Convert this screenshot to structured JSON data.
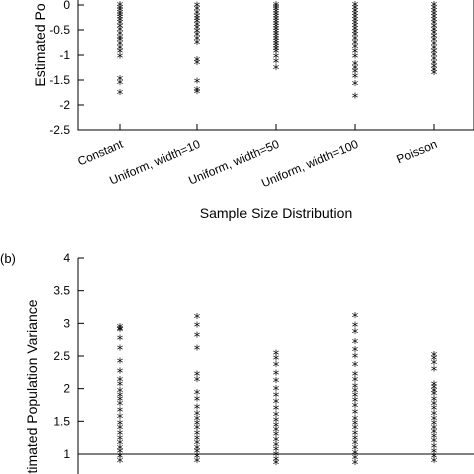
{
  "chart_data": [
    {
      "panel": "(a)",
      "type": "scatter",
      "marker": "*",
      "xlabel": "Sample Size Distribution",
      "ylabel": "Estimated Po",
      "categories": [
        "Constant",
        "Uniform, width=10",
        "Uniform, width=50",
        "Uniform, width=100",
        "Poisson"
      ],
      "ylim": [
        -2.5,
        0
      ],
      "yticks": [
        "0",
        "-0.5",
        "-1",
        "-1.5",
        "-2",
        "-2.5"
      ],
      "series": [
        {
          "category": "Constant",
          "values": [
            -0.02,
            -0.08,
            -0.12,
            -0.18,
            -0.22,
            -0.27,
            -0.32,
            -0.38,
            -0.45,
            -0.52,
            -0.6,
            -0.68,
            -0.72,
            -0.8,
            -0.88,
            -0.95,
            -1.05,
            -1.5,
            -1.58,
            -1.78
          ]
        },
        {
          "category": "Uniform, width=10",
          "values": [
            -0.03,
            -0.1,
            -0.18,
            -0.25,
            -0.3,
            -0.35,
            -0.42,
            -0.48,
            -0.55,
            -0.62,
            -0.7,
            -0.78,
            -1.12,
            -1.18,
            -1.55,
            -1.72,
            -1.76
          ]
        },
        {
          "category": "Uniform, width=50",
          "values": [
            -0.02,
            -0.06,
            -0.1,
            -0.15,
            -0.2,
            -0.25,
            -0.3,
            -0.35,
            -0.4,
            -0.45,
            -0.5,
            -0.55,
            -0.6,
            -0.65,
            -0.7,
            -0.75,
            -0.8,
            -0.85,
            -0.9,
            -0.95,
            -1.05,
            -1.15,
            -1.28
          ]
        },
        {
          "category": "Uniform, width=100",
          "values": [
            -0.02,
            -0.08,
            -0.14,
            -0.2,
            -0.26,
            -0.32,
            -0.38,
            -0.44,
            -0.5,
            -0.56,
            -0.62,
            -0.7,
            -0.78,
            -0.86,
            -0.95,
            -1.05,
            -1.2,
            -1.28,
            -1.35,
            -1.45,
            -1.6,
            -1.85
          ]
        },
        {
          "category": "Poisson",
          "values": [
            -0.02,
            -0.08,
            -0.14,
            -0.2,
            -0.26,
            -0.32,
            -0.38,
            -0.45,
            -0.52,
            -0.58,
            -0.65,
            -0.72,
            -0.8,
            -0.88,
            -0.95,
            -1.02,
            -1.1,
            -1.18,
            -1.25,
            -1.32,
            -1.38
          ]
        }
      ]
    },
    {
      "panel": "(b)",
      "type": "scatter",
      "marker": "*",
      "xlabel": "",
      "ylabel": "stimated Population Variance",
      "categories": [
        "Constant",
        "Uniform, width=10",
        "Uniform, width=50",
        "Uniform, width=100",
        "Poisson"
      ],
      "ylim": [
        0.8,
        4
      ],
      "yticks": [
        "4",
        "3.5",
        "3",
        "2.5",
        "2",
        "1.5",
        "1"
      ],
      "reference_line": 1,
      "series": [
        {
          "category": "Constant",
          "values": [
            2.93,
            2.9,
            2.88,
            2.75,
            2.6,
            2.4,
            2.25,
            2.12,
            2.05,
            1.95,
            1.88,
            1.82,
            1.75,
            1.65,
            1.55,
            1.45,
            1.38,
            1.3,
            1.22,
            1.15,
            1.08,
            1.02,
            0.95,
            0.88
          ]
        },
        {
          "category": "Uniform, width=10",
          "values": [
            3.08,
            2.95,
            2.8,
            2.6,
            2.2,
            2.12,
            1.92,
            1.82,
            1.7,
            1.6,
            1.52,
            1.45,
            1.38,
            1.3,
            1.22,
            1.15,
            1.08,
            1.02,
            0.95,
            0.88
          ]
        },
        {
          "category": "Uniform, width=50",
          "values": [
            2.52,
            2.45,
            2.35,
            2.22,
            2.1,
            1.98,
            1.88,
            1.78,
            1.68,
            1.58,
            1.5,
            1.42,
            1.35,
            1.28,
            1.2,
            1.12,
            1.05,
            0.98,
            0.9,
            0.85
          ]
        },
        {
          "category": "Uniform, width=100",
          "values": [
            3.1,
            2.95,
            2.85,
            2.7,
            2.58,
            2.48,
            2.35,
            2.2,
            2.12,
            2.02,
            1.95,
            1.88,
            1.8,
            1.72,
            1.62,
            1.52,
            1.45,
            1.38,
            1.3,
            1.22,
            1.15,
            1.08,
            1.0,
            0.92,
            0.85
          ]
        },
        {
          "category": "Poisson",
          "values": [
            2.5,
            2.45,
            2.38,
            2.28,
            2.05,
            2.0,
            1.95,
            1.9,
            1.82,
            1.75,
            1.68,
            1.6,
            1.52,
            1.45,
            1.38,
            1.32,
            1.25,
            1.18,
            1.1,
            1.02,
            0.95,
            0.88
          ]
        }
      ]
    }
  ]
}
